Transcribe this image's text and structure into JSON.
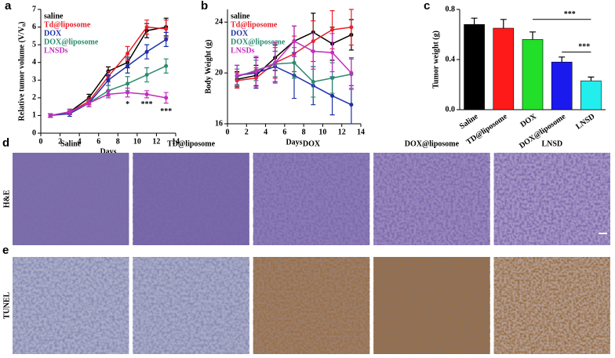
{
  "chart_data": [
    {
      "type": "line",
      "panel_label": "a",
      "x_label": "Days",
      "y_label": "Relative tumor volume (V/V₀)",
      "x": [
        1,
        3,
        5,
        7,
        9,
        11,
        13
      ],
      "xlim": [
        0,
        14
      ],
      "xticks": [
        0,
        2,
        4,
        6,
        8,
        10,
        12,
        14
      ],
      "ylim": [
        0,
        7
      ],
      "yticks": [
        0,
        1,
        2,
        3,
        4,
        5,
        6,
        7
      ],
      "legend": "upper left",
      "series": [
        {
          "name": "saline",
          "color": "#000000",
          "values": [
            1.0,
            1.2,
            2.0,
            3.5,
            4.0,
            5.8,
            6.0
          ],
          "errors": [
            0.1,
            0.15,
            0.2,
            0.25,
            0.3,
            0.4,
            0.5
          ]
        },
        {
          "name": "Td@liposome",
          "color": "#e8202a",
          "values": [
            1.0,
            1.2,
            1.8,
            3.2,
            4.5,
            6.0,
            5.9
          ],
          "errors": [
            0.1,
            0.15,
            0.2,
            0.3,
            0.4,
            0.4,
            0.5
          ]
        },
        {
          "name": "DOX",
          "color": "#1c2fa8",
          "values": [
            1.0,
            1.1,
            1.7,
            3.0,
            3.8,
            4.6,
            5.3
          ],
          "errors": [
            0.1,
            0.15,
            0.2,
            0.3,
            0.4,
            0.4,
            0.4
          ]
        },
        {
          "name": "DOX@liposome",
          "color": "#2a8a6e",
          "values": [
            1.0,
            1.2,
            1.7,
            2.4,
            2.8,
            3.3,
            3.8
          ],
          "errors": [
            0.1,
            0.15,
            0.2,
            0.3,
            0.4,
            0.4,
            0.4
          ]
        },
        {
          "name": "LNSDs",
          "color": "#c42cbe",
          "values": [
            1.0,
            1.2,
            1.7,
            2.2,
            2.3,
            2.2,
            2.0
          ],
          "errors": [
            0.1,
            0.15,
            0.2,
            0.2,
            0.25,
            0.2,
            0.3
          ]
        }
      ],
      "annotations": [
        {
          "text": "*",
          "x": 9,
          "y": 1.6
        },
        {
          "text": "***",
          "x": 11,
          "y": 1.6
        },
        {
          "text": "***",
          "x": 13,
          "y": 1.2
        }
      ]
    },
    {
      "type": "line",
      "panel_label": "b",
      "x_label": "Days",
      "y_label": "Body Weight (g)",
      "x": [
        1,
        3,
        5,
        7,
        9,
        11,
        13
      ],
      "xlim": [
        0,
        14
      ],
      "xticks": [
        0,
        2,
        4,
        6,
        8,
        10,
        12,
        14
      ],
      "ylim": [
        16,
        25
      ],
      "yticks": [
        16,
        20,
        24
      ],
      "legend": "upper left",
      "series": [
        {
          "name": "saline",
          "color": "#000000",
          "values": [
            19.5,
            19.8,
            21.2,
            22.5,
            23.2,
            22.3,
            23.0
          ],
          "errors": [
            0.6,
            0.8,
            1.0,
            1.2,
            1.5,
            1.3,
            1.2
          ]
        },
        {
          "name": "Td@liposome",
          "color": "#e8202a",
          "values": [
            19.4,
            19.6,
            20.8,
            21.5,
            22.5,
            23.4,
            23.6
          ],
          "errors": [
            0.6,
            0.8,
            1.2,
            1.4,
            1.6,
            1.5,
            1.4
          ]
        },
        {
          "name": "DOX",
          "color": "#1c2fa8",
          "values": [
            19.8,
            20.0,
            20.5,
            19.8,
            19.0,
            18.2,
            17.5
          ],
          "errors": [
            0.8,
            1.2,
            1.2,
            1.8,
            1.5,
            1.5,
            1.5
          ]
        },
        {
          "name": "DOX@liposome",
          "color": "#2a8a6e",
          "values": [
            19.7,
            20.2,
            20.7,
            20.8,
            19.3,
            19.6,
            19.9
          ],
          "errors": [
            0.6,
            0.8,
            1.0,
            1.2,
            1.2,
            1.2,
            1.2
          ]
        },
        {
          "name": "LNSDs",
          "color": "#c42cbe",
          "values": [
            19.8,
            20.1,
            20.8,
            22.5,
            21.7,
            21.6,
            20.0
          ],
          "errors": [
            0.8,
            1.2,
            1.6,
            1.2,
            1.4,
            1.5,
            1.2
          ]
        }
      ]
    },
    {
      "type": "bar",
      "panel_label": "c",
      "y_label": "Tumor weight (g)",
      "categories": [
        "Saline",
        "TD@liposome",
        "DOX",
        "DOX@liposome",
        "LNSD"
      ],
      "values": [
        0.68,
        0.65,
        0.56,
        0.38,
        0.23
      ],
      "errors": [
        0.05,
        0.07,
        0.06,
        0.04,
        0.03
      ],
      "colors": [
        "#000000",
        "#ff1a1a",
        "#22e02a",
        "#1a1aee",
        "#22eeee"
      ],
      "ylim": [
        0,
        0.8
      ],
      "yticks": [
        {
          "value": 0,
          "label": "0.0"
        },
        0.4,
        0.8
      ],
      "significance": [
        {
          "text": "***",
          "from": 2,
          "to": 4,
          "y": 0.72
        },
        {
          "text": "***",
          "from": 3,
          "to": 4,
          "y": 0.46
        }
      ]
    }
  ],
  "image_panels": {
    "columns": [
      "Saline",
      "TD@liposome",
      "DOX",
      "DOX@liposome",
      "LNSD"
    ],
    "rows": [
      {
        "letter": "d",
        "label": "H&E"
      },
      {
        "letter": "e",
        "label": "TUNEL"
      }
    ]
  }
}
